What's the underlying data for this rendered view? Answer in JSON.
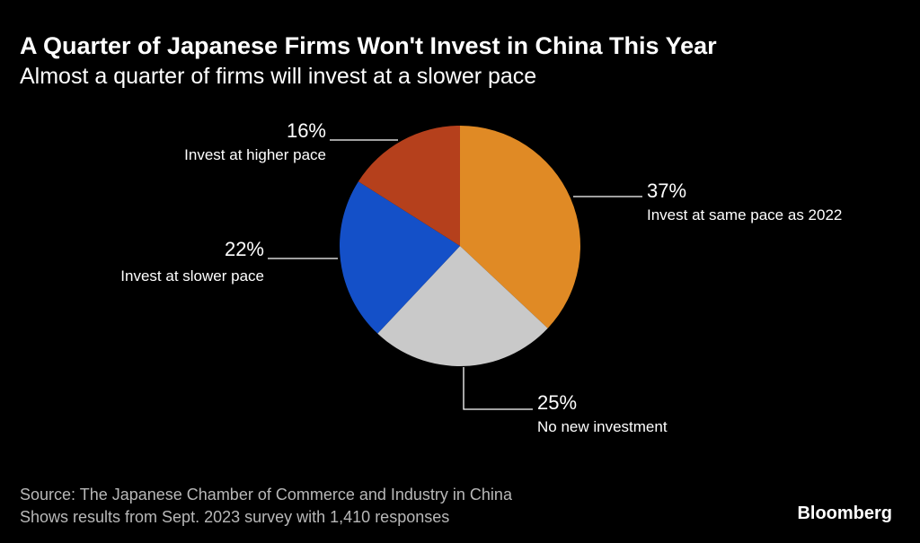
{
  "header": {
    "title": "A Quarter of Japanese Firms Won't Invest in China This Year",
    "subtitle": "Almost a quarter of firms will invest at a slower pace"
  },
  "chart_data": {
    "type": "pie",
    "title": "A Quarter of Japanese Firms Won't Invest in China This Year",
    "subtitle": "Almost a quarter of firms will invest at a slower pace",
    "unit": "%",
    "slices": [
      {
        "label": "Invest at same pace as 2022",
        "value": 37,
        "display": "37%",
        "color": "#e08a25"
      },
      {
        "label": "No new investment",
        "value": 25,
        "display": "25%",
        "color": "#c9c9c9"
      },
      {
        "label": "Invest at slower pace",
        "value": 22,
        "display": "22%",
        "color": "#1450c8"
      },
      {
        "label": "Invest at higher pace",
        "value": 16,
        "display": "16%",
        "color": "#b5401c"
      }
    ]
  },
  "footer": {
    "source": "Source: The Japanese Chamber of Commerce and Industry in China",
    "note": "Shows results from Sept. 2023 survey with 1,410 responses",
    "brand": "Bloomberg"
  }
}
